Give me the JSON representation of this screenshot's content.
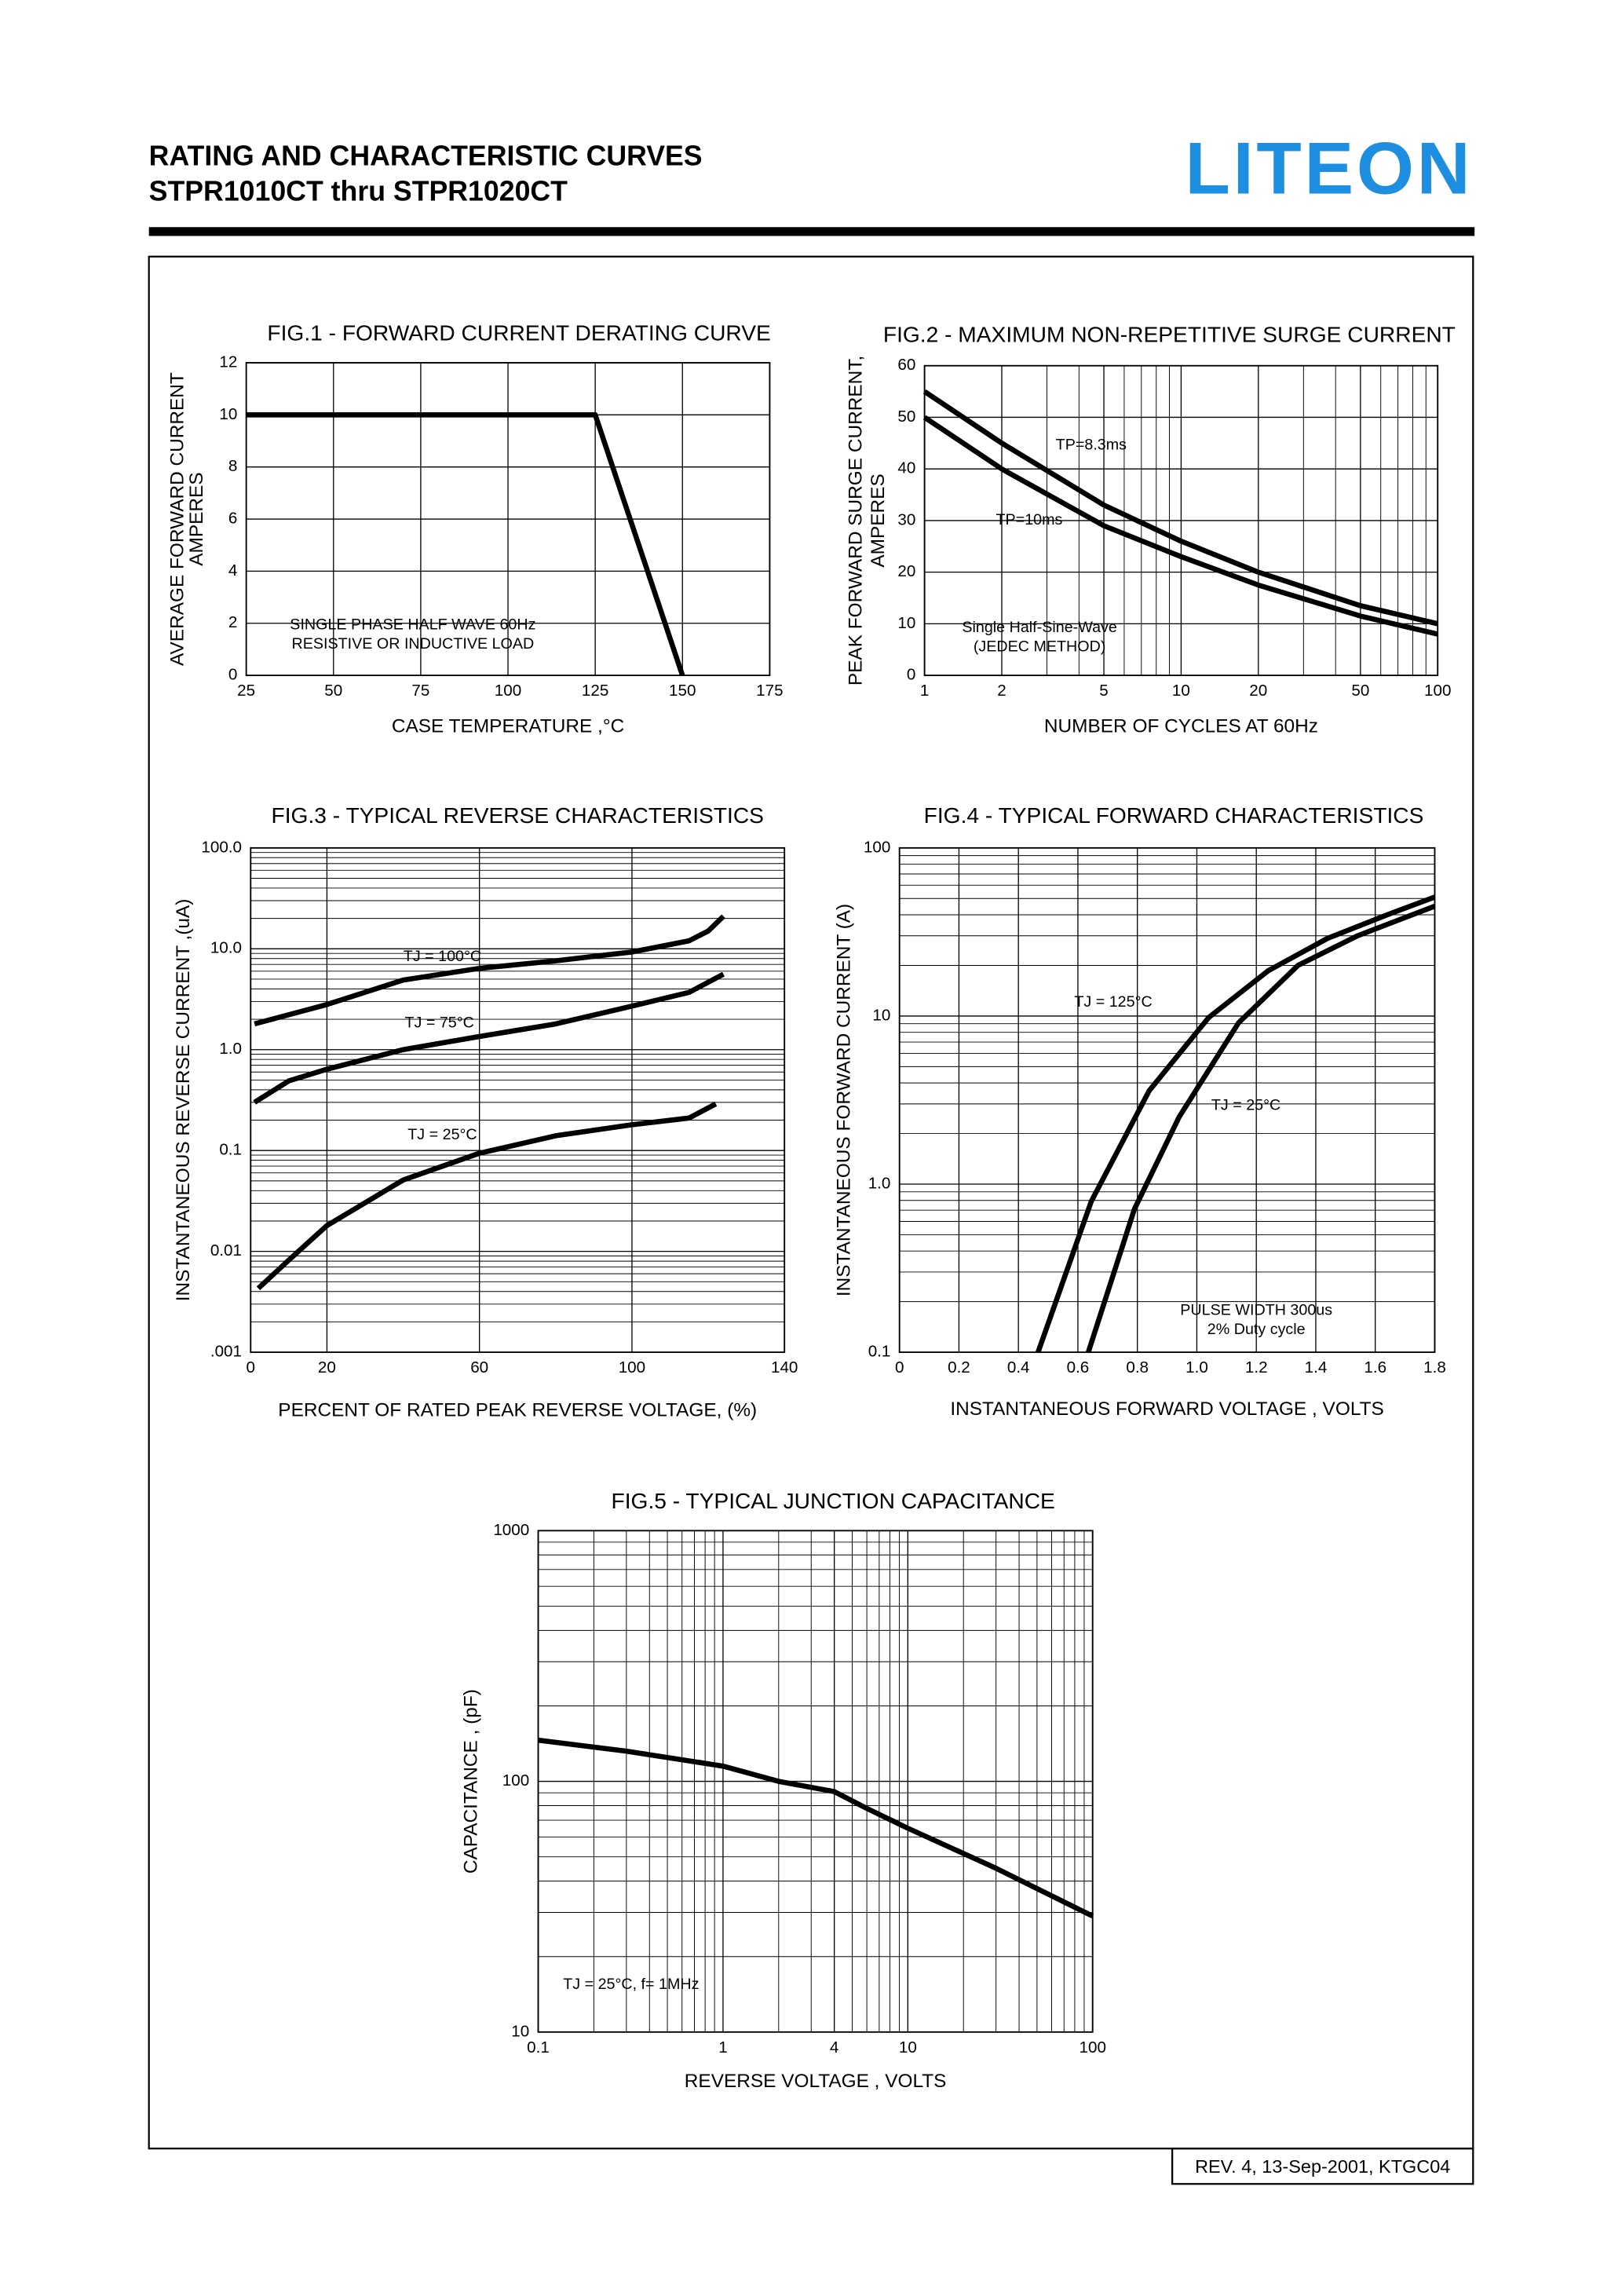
{
  "header": {
    "title": "RATING AND CHARACTERISTIC CURVES",
    "subtitle": "STPR1010CT thru STPR1020CT",
    "logo": "LITEON"
  },
  "chart_data": [
    {
      "type": "line",
      "title": "FIG.1 - FORWARD CURRENT DERATING CURVE",
      "ylabel": [
        "AVERAGE FORWARD CURRENT",
        "AMPERES"
      ],
      "xlabel": "CASE TEMPERATURE ,°C",
      "xlim": [
        25,
        175
      ],
      "xticks": [
        25,
        50,
        75,
        100,
        125,
        150,
        175
      ],
      "ylim": [
        0,
        12
      ],
      "yticks": [
        0,
        2,
        4,
        6,
        8,
        10,
        12
      ],
      "grid": true,
      "series": [
        {
          "x": [
            25,
            125,
            150
          ],
          "values": [
            10,
            10,
            0
          ],
          "color": "#000000"
        }
      ],
      "annotations": [
        "SINGLE PHASE HALF WAVE 60Hz",
        "RESISTIVE OR INDUCTIVE LOAD"
      ]
    },
    {
      "type": "line",
      "title": "FIG.2 - MAXIMUM NON-REPETITIVE SURGE CURRENT",
      "ylabel": [
        "PEAK FORWARD SURGE CURRENT,",
        "AMPERES"
      ],
      "xlabel": "NUMBER OF CYCLES AT 60Hz",
      "xscale": "log",
      "xlim": [
        1,
        100
      ],
      "xticks": [
        1,
        2,
        5,
        10,
        20,
        50,
        100
      ],
      "ylim": [
        0,
        60
      ],
      "yticks": [
        0,
        10,
        20,
        30,
        40,
        50,
        60
      ],
      "grid": true,
      "series": [
        {
          "name": "TP=8.3ms",
          "x": [
            1,
            2,
            5,
            10,
            20,
            50,
            100
          ],
          "values": [
            55,
            45,
            33,
            26,
            20,
            13.5,
            10
          ],
          "color": "#000000"
        },
        {
          "name": "TP=10ms",
          "x": [
            1,
            2,
            5,
            10,
            20,
            50,
            100
          ],
          "values": [
            50,
            40,
            29,
            23,
            17.5,
            11.5,
            8
          ],
          "color": "#000000"
        }
      ],
      "annotations": [
        "Single Half-Sine-Wave",
        "(JEDEC METHOD)"
      ]
    },
    {
      "type": "line",
      "title": "FIG.3 - TYPICAL REVERSE CHARACTERISTICS",
      "ylabel": [
        "INSTANTANEOUS REVERSE CURRENT ,(uA)"
      ],
      "xlabel": "PERCENT OF  RATED PEAK REVERSE VOLTAGE,  (%)",
      "xlim": [
        0,
        140
      ],
      "xticks": [
        0,
        20,
        60,
        100,
        140
      ],
      "yscale": "log",
      "ylim": [
        0.001,
        100
      ],
      "yticks": [
        {
          "value": 0.001,
          "label": ".001"
        },
        0.01,
        0.1,
        {
          "value": 1,
          "label": "1.0"
        },
        {
          "value": 10,
          "label": "10.0"
        },
        {
          "value": 100,
          "label": "100.0"
        }
      ],
      "grid": true,
      "series": [
        {
          "name": "TJ = 100°C",
          "x": [
            1,
            20,
            40,
            60,
            80,
            100,
            115,
            120,
            124
          ],
          "values": [
            1.8,
            2.8,
            4.9,
            6.4,
            7.6,
            9.3,
            12,
            15,
            21
          ],
          "color": "#000000"
        },
        {
          "name": "TJ = 75°C",
          "x": [
            1,
            10,
            20,
            40,
            60,
            80,
            100,
            115,
            124
          ],
          "values": [
            0.3,
            0.49,
            0.64,
            1.0,
            1.35,
            1.8,
            2.7,
            3.7,
            5.6
          ],
          "color": "#000000"
        },
        {
          "name": "TJ = 25°C",
          "x": [
            2,
            10,
            20,
            40,
            60,
            80,
            100,
            115,
            122
          ],
          "values": [
            0.0043,
            0.0082,
            0.018,
            0.051,
            0.094,
            0.14,
            0.18,
            0.21,
            0.29
          ],
          "color": "#000000"
        }
      ],
      "annotations": []
    },
    {
      "type": "line",
      "title": "FIG.4 - TYPICAL FORWARD CHARACTERISTICS",
      "ylabel": [
        "INSTANTANEOUS  FORWARD CURRENT (A)"
      ],
      "xlabel": "INSTANTANEOUS FORWARD VOLTAGE , VOLTS",
      "xlim": [
        0,
        1.8
      ],
      "xticks": [
        0,
        0.2,
        0.4,
        0.6,
        0.8,
        {
          "value": 1,
          "label": "1.0"
        },
        1.2,
        1.4,
        1.6,
        1.8
      ],
      "yscale": "log",
      "ylim": [
        0.1,
        100
      ],
      "yticks": [
        0.1,
        {
          "value": 1,
          "label": "1.0"
        },
        10,
        100
      ],
      "grid": true,
      "series": [
        {
          "name": "TJ = 125°C",
          "x": [
            0.466,
            0.645,
            0.84,
            1.04,
            1.24,
            1.44,
            1.64,
            1.8
          ],
          "values": [
            0.1,
            0.79,
            3.6,
            9.8,
            18.6,
            29,
            40,
            51
          ],
          "color": "#000000"
        },
        {
          "name": "TJ = 25°C",
          "x": [
            0.635,
            0.79,
            0.94,
            1.14,
            1.34,
            1.54,
            1.8
          ],
          "values": [
            0.1,
            0.71,
            2.5,
            9.1,
            20,
            30,
            45
          ],
          "color": "#000000"
        }
      ],
      "annotations": [
        "PULSE WIDTH 300us",
        "2% Duty cycle"
      ]
    },
    {
      "type": "line",
      "title": "FIG.5 - TYPICAL JUNCTION CAPACITANCE",
      "ylabel": [
        "CAPACITANCE , (pF)"
      ],
      "xlabel": "REVERSE VOLTAGE , VOLTS",
      "xscale": "log",
      "xlim": [
        0.1,
        100
      ],
      "xticks": [
        0.1,
        1,
        4,
        10,
        100
      ],
      "yscale": "log",
      "ylim": [
        10,
        1000
      ],
      "yticks": [
        10,
        100,
        1000
      ],
      "grid": true,
      "series": [
        {
          "x": [
            0.1,
            0.3,
            1,
            2,
            4,
            6,
            10,
            30,
            100
          ],
          "values": [
            146,
            132,
            115,
            100,
            91,
            78,
            65,
            45,
            29
          ],
          "color": "#000000"
        }
      ],
      "annotations": [
        "TJ = 25°C, f= 1MHz"
      ]
    }
  ],
  "footer": "REV. 4, 13-Sep-2001, KTGC04"
}
